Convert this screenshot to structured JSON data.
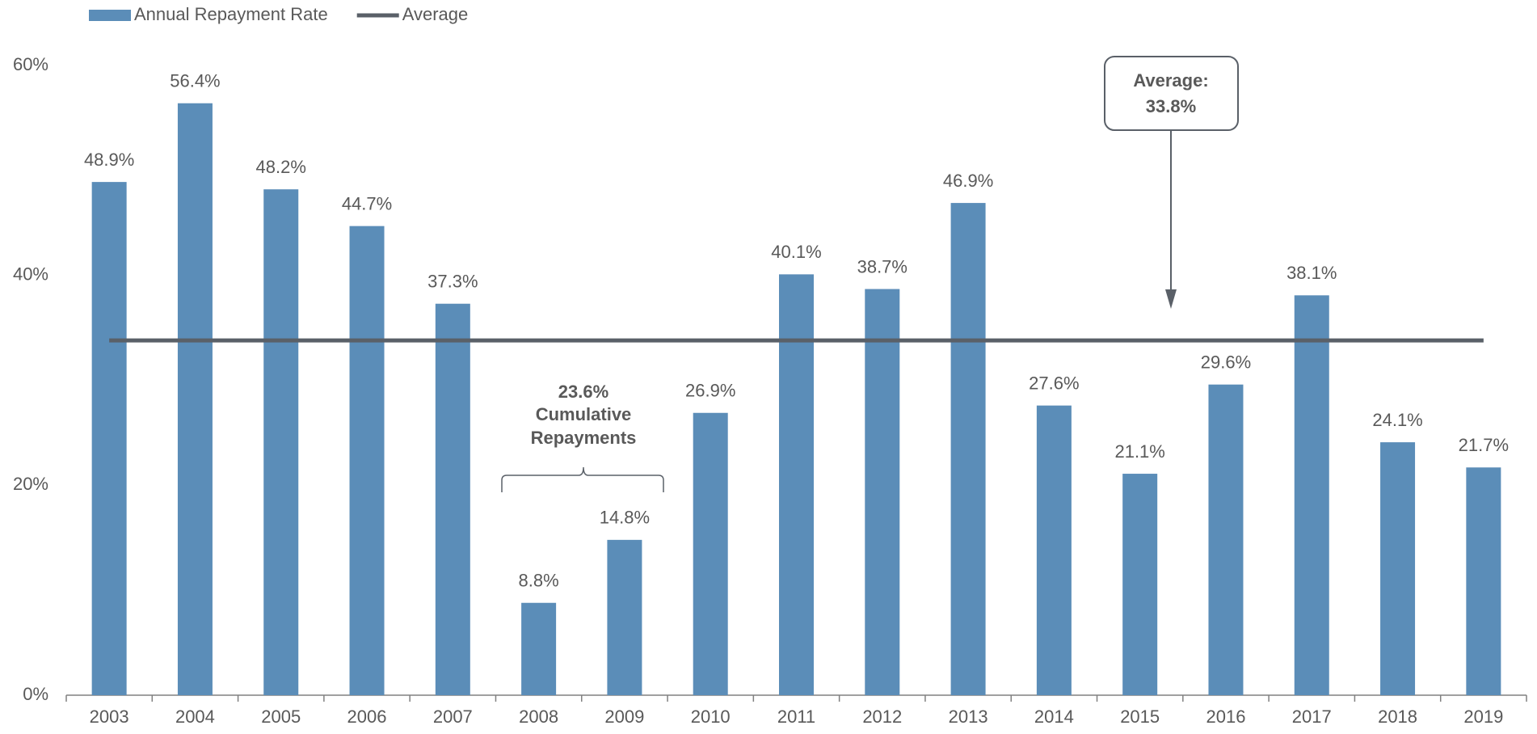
{
  "chart_data": {
    "type": "bar",
    "categories": [
      "2003",
      "2004",
      "2005",
      "2006",
      "2007",
      "2008",
      "2009",
      "2010",
      "2011",
      "2012",
      "2013",
      "2014",
      "2015",
      "2016",
      "2017",
      "2018",
      "2019"
    ],
    "series": [
      {
        "name": "Annual Repayment Rate",
        "type": "bar",
        "color": "#5b8db8",
        "values": [
          48.9,
          56.4,
          48.2,
          44.7,
          37.3,
          8.8,
          14.8,
          26.9,
          40.1,
          38.7,
          46.9,
          27.6,
          21.1,
          29.6,
          38.1,
          24.1,
          21.7
        ],
        "value_labels": [
          "48.9%",
          "56.4%",
          "48.2%",
          "44.7%",
          "37.3%",
          "8.8%",
          "14.8%",
          "26.9%",
          "40.1%",
          "38.7%",
          "46.9%",
          "27.6%",
          "21.1%",
          "29.6%",
          "38.1%",
          "24.1%",
          "21.7%"
        ]
      },
      {
        "name": "Average",
        "type": "line",
        "color": "#5a6068",
        "values": [
          33.8,
          33.8,
          33.8,
          33.8,
          33.8,
          33.8,
          33.8,
          33.8,
          33.8,
          33.8,
          33.8,
          33.8,
          33.8,
          33.8,
          33.8,
          33.8,
          33.8
        ]
      }
    ],
    "ylim": [
      0,
      60
    ],
    "yticks": [
      {
        "value": 0,
        "label": "0%"
      },
      {
        "value": 20,
        "label": "20%"
      },
      {
        "value": 40,
        "label": "40%"
      },
      {
        "value": 60,
        "label": "60%"
      }
    ],
    "grid": false,
    "legend": "top-left",
    "annotations": [
      {
        "lines": [
          "Average:",
          "33.8%"
        ]
      },
      {
        "lines": [
          "23.6%",
          "Cumulative",
          "Repayments"
        ]
      }
    ]
  }
}
